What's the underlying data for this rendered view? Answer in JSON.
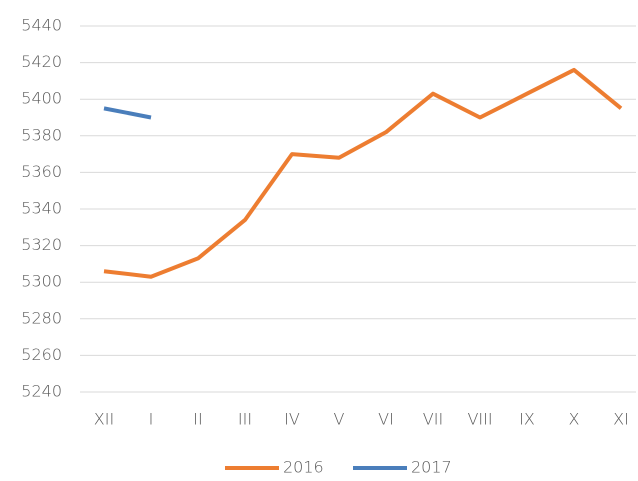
{
  "chart_data": {
    "type": "line",
    "categories": [
      "XII",
      "I",
      "II",
      "III",
      "IV",
      "V",
      "VI",
      "VII",
      "VIII",
      "IX",
      "X",
      "XI"
    ],
    "series": [
      {
        "name": "2016",
        "color": "#ed7d31",
        "values": [
          5306,
          5303,
          5313,
          5334,
          5370,
          5368,
          5382,
          5403,
          5390,
          5403,
          5416,
          5395
        ]
      },
      {
        "name": "2017",
        "color": "#4a7ebb",
        "values": [
          5395,
          5390,
          null,
          null,
          null,
          null,
          null,
          null,
          null,
          null,
          null,
          null
        ]
      }
    ],
    "ylim": [
      5240,
      5440
    ],
    "yticks": [
      5240,
      5260,
      5280,
      5300,
      5320,
      5340,
      5360,
      5380,
      5400,
      5420,
      5440
    ],
    "grid": true,
    "legend": "bottom"
  }
}
